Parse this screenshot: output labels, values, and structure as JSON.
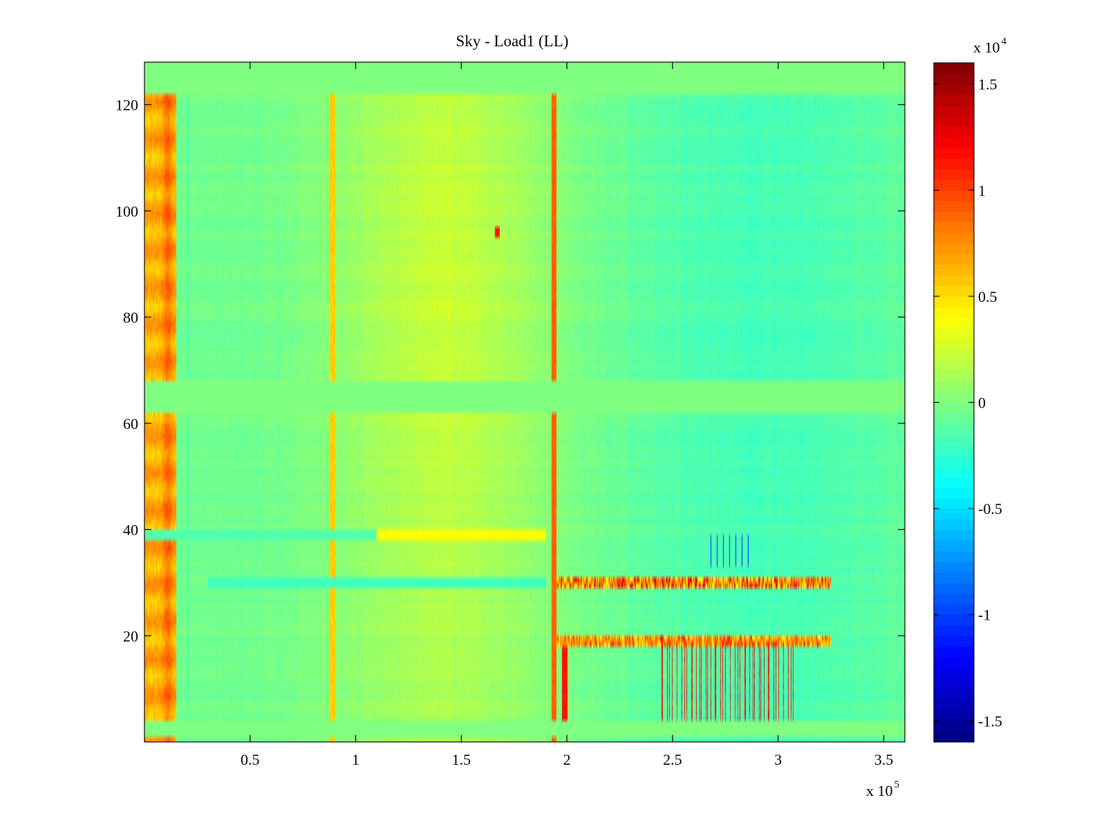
{
  "chart_data": {
    "type": "heatmap",
    "title": "Sky - Load1 (LL)",
    "xlabel": "",
    "ylabel": "",
    "x_exponent_label": "x 10",
    "x_exponent": "5",
    "xlim": [
      0,
      3.6
    ],
    "ylim": [
      0,
      128
    ],
    "x_ticks": [
      0.5,
      1,
      1.5,
      2,
      2.5,
      3,
      3.5
    ],
    "x_tick_labels": [
      "0.5",
      "1",
      "1.5",
      "2",
      "2.5",
      "3",
      "3.5"
    ],
    "y_ticks": [
      20,
      40,
      60,
      80,
      100,
      120
    ],
    "y_tick_labels": [
      "20",
      "40",
      "60",
      "80",
      "100",
      "120"
    ],
    "colormap": "jet",
    "grid": false,
    "colorbar": {
      "clim": [
        -1.6,
        1.6
      ],
      "ticks": [
        -1.5,
        -1,
        -0.5,
        0,
        0.5,
        1,
        1.5
      ],
      "tick_labels": [
        "-1.5",
        "-1",
        "-0.5",
        "0",
        "0.5",
        "1",
        "1.5"
      ],
      "exponent_label": "x 10",
      "exponent": "4",
      "placement": "right"
    },
    "zero_rows": [
      [
        1,
        4
      ],
      [
        62,
        68
      ],
      [
        122,
        128
      ]
    ],
    "features": {
      "left_band": {
        "x": [
          0.0,
          0.15
        ],
        "value": 0.9
      },
      "vertical_lines": [
        {
          "x": 0.89,
          "value": 0.6
        },
        {
          "x": 1.67,
          "y": [
            95,
            97
          ],
          "value": 1.2
        },
        {
          "x": 1.94,
          "value": 0.95
        },
        {
          "x": 1.99,
          "y": [
            4,
            20
          ],
          "value": 1.2
        }
      ],
      "horizontal_lines": [
        {
          "y": 39,
          "x": [
            1.1,
            1.9
          ],
          "value": 0.4
        },
        {
          "y": 39,
          "x": [
            0.0,
            1.1
          ],
          "value": -0.15
        },
        {
          "y": 30,
          "x": [
            0.3,
            1.9
          ],
          "value": -0.2
        },
        {
          "y": 30,
          "x": [
            1.95,
            3.25
          ],
          "value": 1.1
        },
        {
          "y": 19,
          "x": [
            1.95,
            3.25
          ],
          "value": 0.9
        }
      ],
      "striped_region": {
        "x": [
          2.44,
          3.08
        ],
        "y": [
          4,
          19
        ],
        "value": 1.3
      },
      "negative_ticks": {
        "x": [
          2.67,
          2.88
        ],
        "y": [
          33,
          39
        ],
        "value": -1.1
      }
    }
  }
}
